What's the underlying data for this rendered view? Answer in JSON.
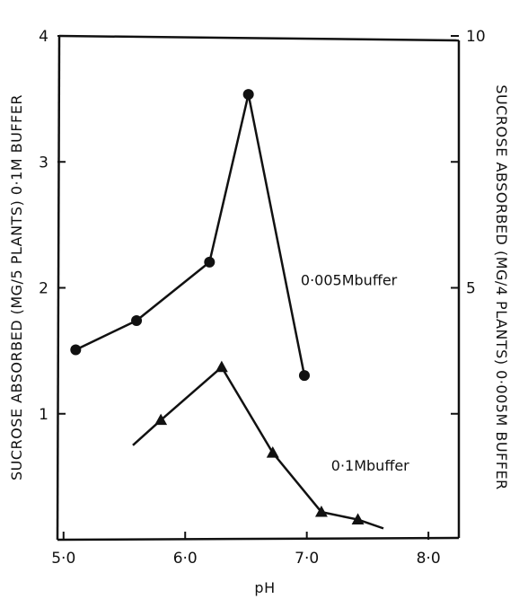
{
  "chart_data": {
    "type": "line",
    "xlabel": "pH",
    "ylabel_left": "SUCROSE ABSORBED (MG/5 PLANTS) 0·1M BUFFER",
    "ylabel_right": "SUCROSE ABSORBED (MG/4 PLANTS) 0·005M BUFFER",
    "x_ticks": [
      "5·0",
      "6·0",
      "7·0",
      "8·0"
    ],
    "x_tick_values": [
      5.0,
      6.0,
      7.0,
      8.0
    ],
    "y_left_ticks": [
      "1",
      "2",
      "3",
      "4"
    ],
    "y_left_tick_values": [
      1,
      2,
      3,
      4
    ],
    "y_right_ticks": [
      "5",
      "10"
    ],
    "y_right_tick_values": [
      5,
      10
    ],
    "xlim": [
      4.95,
      8.25
    ],
    "ylim_left": [
      0,
      4
    ],
    "ylim_right": [
      0,
      10
    ],
    "grid": false,
    "series": [
      {
        "name": "0·005M BUFFER",
        "label_text": "0·005Mbuffer",
        "axis": "right",
        "marker": "circle",
        "x": [
          5.1,
          5.6,
          6.2,
          6.52,
          6.98
        ],
        "y": [
          3.77,
          4.35,
          5.51,
          8.84,
          3.26
        ],
        "label_at": [
          6.95,
          5.05
        ]
      },
      {
        "name": "0·1M BUFFER",
        "label_text": "0·1Mbuffer",
        "axis": "left",
        "marker": "triangle",
        "x": [
          5.8,
          6.3,
          6.72,
          7.12,
          7.42
        ],
        "y": [
          0.95,
          1.37,
          0.69,
          0.22,
          0.16
        ],
        "lead_in": [
          5.57,
          0.75
        ],
        "tail_out": [
          7.63,
          0.09
        ],
        "label_at": [
          7.2,
          0.55
        ]
      }
    ]
  }
}
